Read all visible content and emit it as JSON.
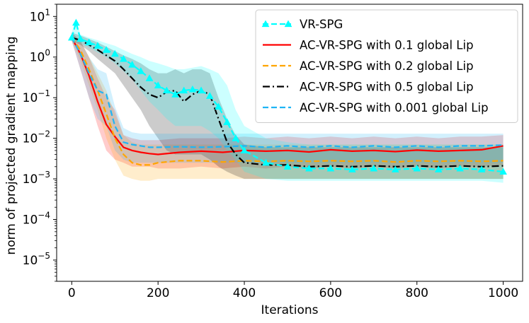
{
  "chart_data": {
    "type": "line",
    "xlabel": "Iterations",
    "ylabel": "norm of projected gradient mapping",
    "y_scale": "log",
    "xlim": [
      -35,
      1045
    ],
    "ylim": [
      3e-06,
      20
    ],
    "x_ticks": [
      0,
      200,
      400,
      600,
      800,
      1000
    ],
    "x_tick_labels": [
      "0",
      "200",
      "400",
      "600",
      "800",
      "1000"
    ],
    "y_ticks": [
      1e-05,
      0.0001,
      0.001,
      0.01,
      0.1,
      1,
      10
    ],
    "y_tick_labels": [
      {
        "base": "10",
        "exp": "−5"
      },
      {
        "base": "10",
        "exp": "−4"
      },
      {
        "base": "10",
        "exp": "−3"
      },
      {
        "base": "10",
        "exp": "−2"
      },
      {
        "base": "10",
        "exp": "−1"
      },
      {
        "base": "10",
        "exp": "0"
      },
      {
        "base": "10",
        "exp": "1"
      }
    ],
    "legend_position": "top-right",
    "series": [
      {
        "name": "AC-VR-SPG with 0.1 global Lip",
        "color": "#ff0000",
        "dash": "solid",
        "marker": "none",
        "x": [
          0,
          20,
          40,
          60,
          80,
          100,
          120,
          140,
          160,
          180,
          200,
          250,
          300,
          350,
          400,
          450,
          500,
          550,
          600,
          650,
          700,
          750,
          800,
          850,
          900,
          950,
          1000
        ],
        "y": [
          3,
          1.2,
          0.35,
          0.08,
          0.022,
          0.011,
          0.006,
          0.005,
          0.0045,
          0.0042,
          0.004,
          0.0045,
          0.0048,
          0.0045,
          0.005,
          0.0048,
          0.005,
          0.0046,
          0.0052,
          0.0048,
          0.005,
          0.0047,
          0.0051,
          0.0048,
          0.005,
          0.0052,
          0.0065
        ],
        "band_low": [
          2.5,
          0.5,
          0.1,
          0.02,
          0.005,
          0.003,
          0.0025,
          0.002,
          0.002,
          0.002,
          0.0018,
          0.0018,
          0.002,
          0.0018,
          0.002,
          0.0018,
          0.002,
          0.0018,
          0.002,
          0.0018,
          0.002,
          0.0018,
          0.002,
          0.0018,
          0.002,
          0.002,
          0.0022
        ],
        "band_high": [
          4,
          2.5,
          1,
          0.3,
          0.1,
          0.05,
          0.012,
          0.01,
          0.009,
          0.009,
          0.009,
          0.01,
          0.01,
          0.01,
          0.011,
          0.01,
          0.011,
          0.01,
          0.011,
          0.01,
          0.011,
          0.01,
          0.011,
          0.01,
          0.011,
          0.011,
          0.012
        ]
      },
      {
        "name": "AC-VR-SPG with 0.2 global Lip",
        "color": "#ffa500",
        "dash": "dashed",
        "marker": "none",
        "x": [
          0,
          20,
          40,
          60,
          80,
          100,
          120,
          140,
          160,
          180,
          200,
          250,
          300,
          350,
          400,
          450,
          500,
          550,
          600,
          650,
          700,
          750,
          800,
          850,
          900,
          950,
          1000
        ],
        "y": [
          3,
          1.5,
          0.5,
          0.15,
          0.04,
          0.01,
          0.004,
          0.0025,
          0.0022,
          0.0022,
          0.0025,
          0.0028,
          0.0028,
          0.0026,
          0.0028,
          0.0027,
          0.0028,
          0.0027,
          0.0028,
          0.0027,
          0.0028,
          0.0026,
          0.0028,
          0.0027,
          0.0028,
          0.0027,
          0.0028
        ],
        "band_low": [
          2.5,
          0.8,
          0.2,
          0.05,
          0.01,
          0.003,
          0.0012,
          0.001,
          0.0009,
          0.0009,
          0.001,
          0.001,
          0.001,
          0.001,
          0.001,
          0.001,
          0.001,
          0.001,
          0.001,
          0.001,
          0.001,
          0.001,
          0.001,
          0.001,
          0.001,
          0.001,
          0.001
        ],
        "band_high": [
          4,
          2.5,
          1,
          0.4,
          0.15,
          0.04,
          0.012,
          0.008,
          0.007,
          0.007,
          0.007,
          0.007,
          0.007,
          0.007,
          0.007,
          0.007,
          0.007,
          0.007,
          0.007,
          0.007,
          0.007,
          0.007,
          0.007,
          0.007,
          0.007,
          0.007,
          0.007
        ]
      },
      {
        "name": "AC-VR-SPG with 0.5 global Lip",
        "color": "#000000",
        "dash": "dashdot",
        "marker": "none",
        "x": [
          0,
          20,
          40,
          60,
          80,
          100,
          120,
          140,
          160,
          180,
          200,
          220,
          240,
          260,
          280,
          300,
          320,
          340,
          360,
          380,
          400,
          450,
          500,
          550,
          600,
          650,
          700,
          750,
          800,
          850,
          900,
          950,
          1000
        ],
        "y": [
          3,
          2.6,
          2.0,
          1.5,
          1.1,
          0.8,
          0.5,
          0.3,
          0.18,
          0.12,
          0.1,
          0.14,
          0.15,
          0.08,
          0.12,
          0.15,
          0.12,
          0.03,
          0.008,
          0.004,
          0.0025,
          0.0022,
          0.0022,
          0.002,
          0.0021,
          0.002,
          0.0021,
          0.002,
          0.0021,
          0.002,
          0.0021,
          0.002,
          0.0021
        ],
        "band_low": [
          2.5,
          2.0,
          1.4,
          0.9,
          0.6,
          0.4,
          0.2,
          0.1,
          0.05,
          0.02,
          0.01,
          0.005,
          0.004,
          0.004,
          0.004,
          0.004,
          0.003,
          0.002,
          0.0015,
          0.0012,
          0.001,
          0.001,
          0.001,
          0.001,
          0.001,
          0.001,
          0.001,
          0.001,
          0.001,
          0.001,
          0.001,
          0.001,
          0.001
        ],
        "band_high": [
          4,
          3.4,
          2.8,
          2.3,
          1.8,
          1.4,
          1.1,
          0.9,
          0.7,
          0.5,
          0.4,
          0.4,
          0.5,
          0.4,
          0.5,
          0.5,
          0.4,
          0.1,
          0.03,
          0.012,
          0.007,
          0.006,
          0.006,
          0.006,
          0.006,
          0.006,
          0.006,
          0.006,
          0.006,
          0.006,
          0.006,
          0.006,
          0.006
        ]
      },
      {
        "name": "AC-VR-SPG with 0.001 global Lip",
        "color": "#1fb4f5",
        "dash": "dashed",
        "marker": "none",
        "x": [
          0,
          20,
          40,
          60,
          80,
          100,
          120,
          140,
          160,
          180,
          200,
          250,
          300,
          350,
          400,
          450,
          500,
          550,
          600,
          650,
          700,
          750,
          800,
          850,
          900,
          950,
          1000
        ],
        "y": [
          3,
          1.2,
          0.4,
          0.15,
          0.12,
          0.02,
          0.008,
          0.007,
          0.0065,
          0.006,
          0.006,
          0.0062,
          0.006,
          0.0062,
          0.0065,
          0.006,
          0.0065,
          0.006,
          0.0065,
          0.006,
          0.0065,
          0.006,
          0.0065,
          0.006,
          0.0065,
          0.0065,
          0.0068
        ],
        "band_low": [
          2.5,
          0.5,
          0.1,
          0.03,
          0.02,
          0.005,
          0.003,
          0.0025,
          0.0025,
          0.0025,
          0.0025,
          0.0025,
          0.0025,
          0.0025,
          0.0025,
          0.0025,
          0.0025,
          0.0025,
          0.0025,
          0.0025,
          0.0025,
          0.0025,
          0.0025,
          0.0025,
          0.0025,
          0.0025,
          0.0025
        ],
        "band_high": [
          4,
          2.5,
          1,
          0.5,
          0.4,
          0.06,
          0.018,
          0.014,
          0.013,
          0.013,
          0.013,
          0.013,
          0.013,
          0.013,
          0.013,
          0.013,
          0.013,
          0.013,
          0.013,
          0.013,
          0.013,
          0.013,
          0.013,
          0.013,
          0.013,
          0.013,
          0.013
        ]
      },
      {
        "name": "VR-SPG",
        "color": "#00ffff",
        "dash": "dashed",
        "marker": "triangle",
        "x": [
          0,
          10,
          20,
          40,
          60,
          80,
          100,
          120,
          140,
          160,
          180,
          200,
          220,
          240,
          260,
          280,
          300,
          320,
          340,
          360,
          380,
          400,
          450,
          500,
          550,
          600,
          650,
          700,
          750,
          800,
          850,
          900,
          950,
          1000
        ],
        "y": [
          3,
          7,
          2.8,
          2.3,
          1.9,
          1.5,
          1.2,
          0.9,
          0.65,
          0.45,
          0.3,
          0.2,
          0.15,
          0.12,
          0.15,
          0.16,
          0.15,
          0.11,
          0.06,
          0.025,
          0.01,
          0.005,
          0.0025,
          0.002,
          0.0018,
          0.0018,
          0.0017,
          0.0018,
          0.0017,
          0.0018,
          0.0017,
          0.0018,
          0.0017,
          0.0015
        ],
        "band_low": [
          2.5,
          3,
          2.2,
          1.7,
          1.3,
          1.0,
          0.7,
          0.45,
          0.28,
          0.15,
          0.08,
          0.05,
          0.03,
          0.02,
          0.02,
          0.02,
          0.02,
          0.015,
          0.01,
          0.005,
          0.003,
          0.0015,
          0.001,
          0.0009,
          0.0009,
          0.0009,
          0.0009,
          0.0009,
          0.0009,
          0.0009,
          0.0009,
          0.0009,
          0.0009,
          0.0008
        ],
        "band_high": [
          4,
          9,
          3.6,
          3.0,
          2.6,
          2.2,
          1.9,
          1.5,
          1.2,
          1.0,
          0.8,
          0.7,
          0.6,
          0.5,
          0.5,
          0.55,
          0.6,
          0.5,
          0.4,
          0.2,
          0.05,
          0.02,
          0.01,
          0.008,
          0.007,
          0.007,
          0.007,
          0.007,
          0.007,
          0.007,
          0.007,
          0.007,
          0.007,
          0.007
        ]
      }
    ],
    "legend_order": [
      4,
      0,
      1,
      2,
      3
    ]
  }
}
